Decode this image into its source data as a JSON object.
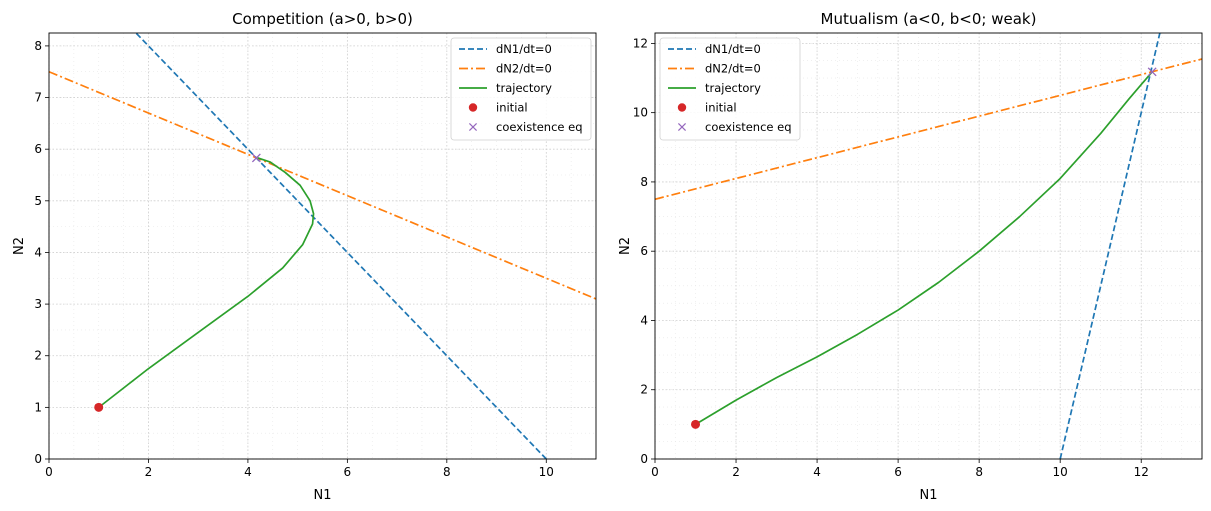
{
  "chart_data": [
    {
      "type": "line",
      "title": "Competition (a>0, b>0)",
      "xlabel": "N1",
      "ylabel": "N2",
      "xlim": [
        0,
        11
      ],
      "ylim": [
        0,
        8.25
      ],
      "xticks": [
        0,
        2,
        4,
        6,
        8,
        10
      ],
      "yticks": [
        0,
        1,
        2,
        3,
        4,
        5,
        6,
        7,
        8
      ],
      "grid": true,
      "legend_position": "top-right",
      "series": [
        {
          "name": "dN1/dt=0",
          "style": "dashed",
          "color": "#1f77b4",
          "x": [
            0,
            10
          ],
          "y": [
            10,
            0
          ]
        },
        {
          "name": "dN2/dt=0",
          "style": "dashdot",
          "color": "#ff7f0e",
          "x": [
            0,
            15
          ],
          "y": [
            7.5,
            1.5
          ]
        },
        {
          "name": "trajectory",
          "style": "solid",
          "color": "#2ca02c",
          "x": [
            1.0,
            2.0,
            3.0,
            4.0,
            4.7,
            5.1,
            5.3,
            5.32,
            5.25,
            5.05,
            4.75,
            4.45,
            4.2
          ],
          "y": [
            1.0,
            1.75,
            2.45,
            3.15,
            3.7,
            4.15,
            4.55,
            4.75,
            5.0,
            5.3,
            5.55,
            5.75,
            5.83
          ]
        },
        {
          "name": "initial",
          "style": "marker-dot",
          "color": "#d62728",
          "x": [
            1
          ],
          "y": [
            1
          ]
        },
        {
          "name": "coexistence eq",
          "style": "marker-x",
          "color": "#9467bd",
          "x": [
            4.17
          ],
          "y": [
            5.83
          ]
        }
      ]
    },
    {
      "type": "line",
      "title": "Mutualism (a<0, b<0; weak)",
      "xlabel": "N1",
      "ylabel": "N2",
      "xlim": [
        0,
        13.5
      ],
      "ylim": [
        0,
        12.3
      ],
      "xticks": [
        0,
        2,
        4,
        6,
        8,
        10,
        12
      ],
      "yticks": [
        0,
        2,
        4,
        6,
        8,
        10,
        12
      ],
      "grid": true,
      "legend_position": "top-left",
      "series": [
        {
          "name": "dN1/dt=0",
          "style": "dashed",
          "color": "#1f77b4",
          "x": [
            10,
            12.5
          ],
          "y": [
            0,
            12.5
          ]
        },
        {
          "name": "dN2/dt=0",
          "style": "dashdot",
          "color": "#ff7f0e",
          "x": [
            0,
            13.5
          ],
          "y": [
            7.5,
            11.55
          ]
        },
        {
          "name": "trajectory",
          "style": "solid",
          "color": "#2ca02c",
          "x": [
            1.0,
            2.0,
            3.0,
            4.0,
            5.0,
            6.0,
            7.0,
            8.0,
            9.0,
            10.0,
            11.0,
            11.7,
            12.27
          ],
          "y": [
            1.0,
            1.7,
            2.35,
            2.95,
            3.6,
            4.3,
            5.1,
            6.0,
            7.0,
            8.1,
            9.4,
            10.4,
            11.18
          ]
        },
        {
          "name": "initial",
          "style": "marker-dot",
          "color": "#d62728",
          "x": [
            1
          ],
          "y": [
            1
          ]
        },
        {
          "name": "coexistence eq",
          "style": "marker-x",
          "color": "#9467bd",
          "x": [
            12.27
          ],
          "y": [
            11.18
          ]
        }
      ]
    }
  ]
}
